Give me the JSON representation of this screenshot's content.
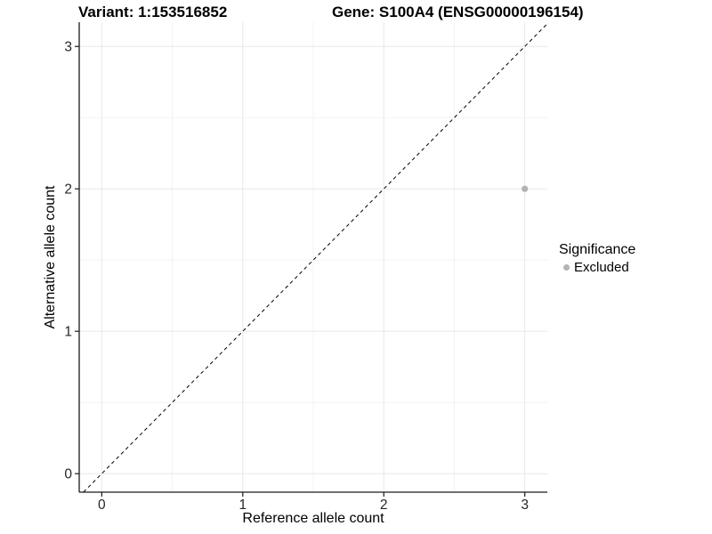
{
  "header": {
    "variant_title": "Variant: 1:153516852",
    "gene_title": "Gene: S100A4 (ENSG00000196154)"
  },
  "chart_data": {
    "type": "scatter",
    "xlabel": "Reference allele count",
    "ylabel": "Alternative allele count",
    "x_ticks": [
      0,
      1,
      2,
      3
    ],
    "y_ticks": [
      0,
      1,
      2,
      3
    ],
    "x_minor": [
      0.5,
      1.5,
      2.5
    ],
    "y_minor": [
      0.5,
      1.5,
      2.5
    ],
    "xlim": [
      -0.16,
      3.16
    ],
    "ylim": [
      -0.13,
      3.17
    ],
    "grid": "major and minor gridlines, light gray on white panel",
    "axes": "black left and bottom axis lines with outward ticks",
    "identity_line": {
      "slope": 1,
      "intercept": 0,
      "style": "dashed",
      "color": "#000000"
    },
    "series": [
      {
        "name": "Excluded",
        "color": "#b3b3b3",
        "points": [
          {
            "x": 3,
            "y": 2
          }
        ]
      }
    ],
    "legend": {
      "title": "Significance",
      "position": "right",
      "items": [
        {
          "label": "Excluded",
          "color": "#b3b3b3",
          "marker": "circle"
        }
      ]
    }
  },
  "colors": {
    "background": "#ffffff",
    "grid_major": "#e8e8e8",
    "grid_minor": "#f3f3f3",
    "axis": "#1a1a1a",
    "tick_label": "#262626",
    "point": "#b3b3b3",
    "text": "#000000"
  }
}
